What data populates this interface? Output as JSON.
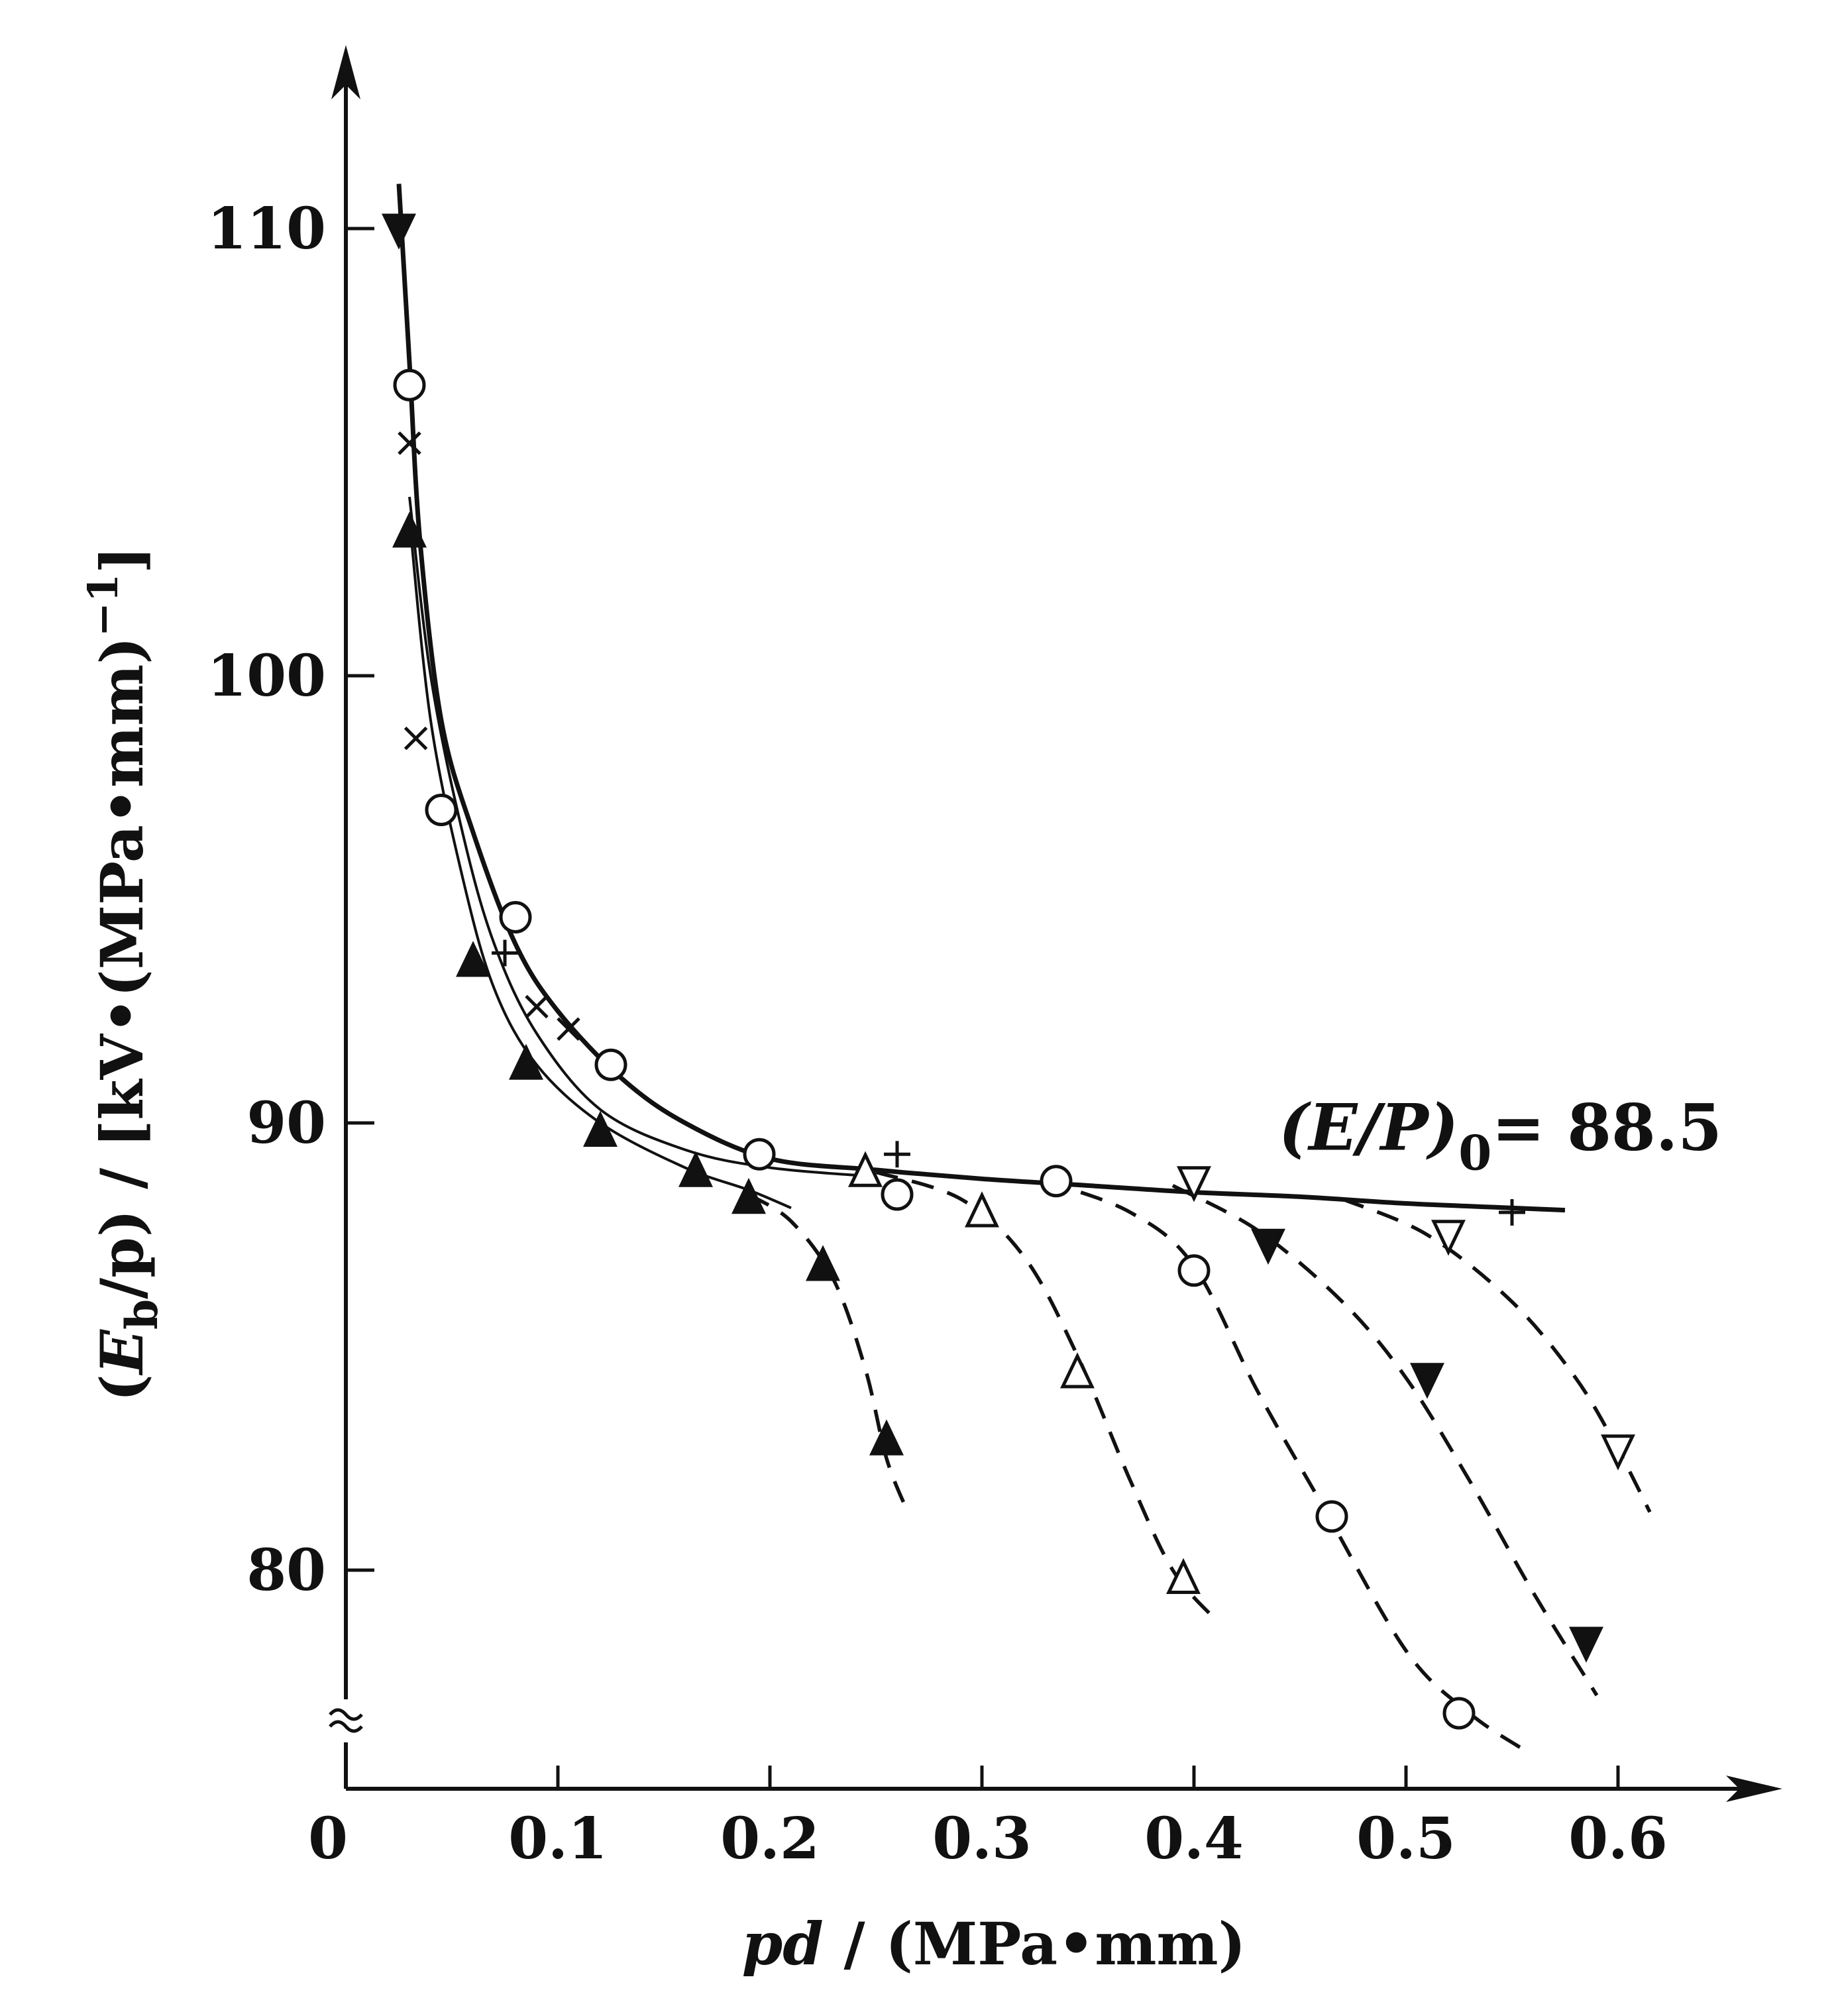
{
  "chart_data": {
    "type": "line",
    "title": "",
    "xlabel": {
      "prefix": "pd",
      "suffix": " / (MPa•mm)"
    },
    "ylabel": {
      "open": "(E",
      "sub": "b",
      "mid": "/p) / [kV•(MPa•mm)",
      "sup": "−1",
      "close": "]"
    },
    "xlim": [
      0,
      0.65
    ],
    "ylim": [
      76.5,
      111.5
    ],
    "axis_break_y": 76.7,
    "x_origin_label": "0",
    "x_ticks": [
      {
        "value": 0.1,
        "label": "0.1"
      },
      {
        "value": 0.2,
        "label": "0.2"
      },
      {
        "value": 0.3,
        "label": "0.3"
      },
      {
        "value": 0.4,
        "label": "0.4"
      },
      {
        "value": 0.5,
        "label": "0.5"
      },
      {
        "value": 0.6,
        "label": "0.6"
      }
    ],
    "y_ticks": [
      {
        "value": 80,
        "label": "80"
      },
      {
        "value": 90,
        "label": "90"
      },
      {
        "value": 100,
        "label": "100"
      },
      {
        "value": 110,
        "label": "110"
      }
    ],
    "grid": false,
    "legend": "none",
    "annotation": {
      "prefix": "(E/P)",
      "sub": "0",
      "suffix": "= 88.5",
      "x": 0.44,
      "y": 89.4
    },
    "envelope": {
      "name": "",
      "style": "solid",
      "points": [
        [
          0.025,
          111.0
        ],
        [
          0.03,
          107.0
        ],
        [
          0.035,
          103.0
        ],
        [
          0.045,
          99.0
        ],
        [
          0.06,
          96.5
        ],
        [
          0.08,
          94.0
        ],
        [
          0.1,
          92.5
        ],
        [
          0.13,
          91.0
        ],
        [
          0.16,
          90.0
        ],
        [
          0.2,
          89.2
        ],
        [
          0.25,
          88.95
        ],
        [
          0.3,
          88.75
        ],
        [
          0.35,
          88.6
        ],
        [
          0.4,
          88.45
        ],
        [
          0.45,
          88.35
        ],
        [
          0.5,
          88.2
        ],
        [
          0.55,
          88.1
        ],
        [
          0.575,
          88.05
        ]
      ]
    },
    "inner_curves": [
      {
        "style": "thin",
        "points": [
          [
            0.03,
            104.0
          ],
          [
            0.04,
            100.0
          ],
          [
            0.055,
            96.5
          ],
          [
            0.07,
            94.0
          ],
          [
            0.09,
            92.0
          ],
          [
            0.12,
            90.3
          ],
          [
            0.16,
            89.4
          ],
          [
            0.2,
            89.0
          ],
          [
            0.25,
            88.8
          ]
        ]
      },
      {
        "style": "thin",
        "points": [
          [
            0.03,
            103.5
          ],
          [
            0.04,
            99.0
          ],
          [
            0.055,
            95.5
          ],
          [
            0.07,
            93.0
          ],
          [
            0.09,
            91.3
          ],
          [
            0.12,
            90.0
          ],
          [
            0.16,
            89.0
          ],
          [
            0.19,
            88.5
          ],
          [
            0.21,
            88.1
          ]
        ]
      }
    ],
    "dashed_curves": [
      {
        "points": [
          [
            0.19,
            88.4
          ],
          [
            0.21,
            87.8
          ],
          [
            0.23,
            86.5
          ],
          [
            0.245,
            84.5
          ],
          [
            0.255,
            82.5
          ],
          [
            0.265,
            81.3
          ]
        ]
      },
      {
        "points": [
          [
            0.25,
            88.9
          ],
          [
            0.29,
            88.3
          ],
          [
            0.32,
            87.0
          ],
          [
            0.345,
            84.8
          ],
          [
            0.37,
            82.0
          ],
          [
            0.39,
            80.0
          ],
          [
            0.41,
            78.9
          ]
        ]
      },
      {
        "points": [
          [
            0.33,
            88.7
          ],
          [
            0.37,
            88.0
          ],
          [
            0.4,
            86.8
          ],
          [
            0.43,
            84.0
          ],
          [
            0.46,
            81.5
          ],
          [
            0.5,
            78.2
          ],
          [
            0.53,
            76.8
          ],
          [
            0.555,
            76.0
          ]
        ]
      },
      {
        "points": [
          [
            0.39,
            88.6
          ],
          [
            0.43,
            87.6
          ],
          [
            0.47,
            86.0
          ],
          [
            0.5,
            84.3
          ],
          [
            0.53,
            82.0
          ],
          [
            0.56,
            79.5
          ],
          [
            0.59,
            77.2
          ]
        ]
      },
      {
        "points": [
          [
            0.47,
            88.3
          ],
          [
            0.51,
            87.5
          ],
          [
            0.55,
            86.0
          ],
          [
            0.58,
            84.3
          ],
          [
            0.6,
            82.7
          ],
          [
            0.615,
            81.3
          ]
        ]
      }
    ],
    "series": [
      {
        "marker": "triangle-filled",
        "points": [
          [
            0.03,
            103.2
          ],
          [
            0.06,
            93.6
          ],
          [
            0.085,
            91.3
          ],
          [
            0.12,
            89.8
          ],
          [
            0.165,
            88.9
          ],
          [
            0.19,
            88.3
          ],
          [
            0.225,
            86.8
          ],
          [
            0.255,
            82.9
          ]
        ]
      },
      {
        "marker": "circle-open",
        "points": [
          [
            0.03,
            106.5
          ],
          [
            0.045,
            97.0
          ],
          [
            0.08,
            94.6
          ],
          [
            0.125,
            91.3
          ],
          [
            0.195,
            89.3
          ],
          [
            0.26,
            88.4
          ],
          [
            0.335,
            88.7
          ],
          [
            0.4,
            86.7
          ],
          [
            0.465,
            81.2
          ],
          [
            0.525,
            76.8
          ]
        ]
      },
      {
        "marker": "cross-x",
        "points": [
          [
            0.03,
            105.2
          ],
          [
            0.033,
            98.6
          ],
          [
            0.09,
            92.6
          ],
          [
            0.105,
            92.1
          ]
        ]
      },
      {
        "marker": "plus",
        "points": [
          [
            0.075,
            93.8
          ],
          [
            0.26,
            89.3
          ],
          [
            0.55,
            88.0
          ]
        ]
      },
      {
        "marker": "triangle-open",
        "points": [
          [
            0.245,
            88.9
          ],
          [
            0.3,
            88.0
          ],
          [
            0.345,
            84.4
          ],
          [
            0.395,
            79.8
          ]
        ]
      },
      {
        "marker": "triangle-down-filled",
        "points": [
          [
            0.025,
            110.0
          ],
          [
            0.435,
            87.3
          ],
          [
            0.51,
            84.3
          ],
          [
            0.585,
            78.4
          ]
        ]
      },
      {
        "marker": "triangle-down-open",
        "points": [
          [
            0.4,
            88.7
          ],
          [
            0.52,
            87.5
          ],
          [
            0.6,
            82.7
          ]
        ]
      }
    ]
  }
}
